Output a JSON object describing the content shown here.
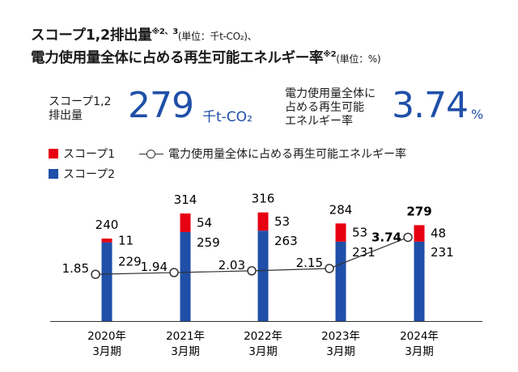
{
  "header": {
    "line1": "スコープ1,2排出量",
    "line1_note": "※2、3",
    "line1_unit": "(単位：千t-CO₂)、",
    "line2": "電力使用量全体に占める再生可能エネルギー率",
    "line2_note": "※2",
    "line2_unit": "(単位：%)"
  },
  "kpi": {
    "emissions_label_1": "スコープ1,2",
    "emissions_label_2": "排出量",
    "emissions_value": "279",
    "emissions_unit": "千t-CO₂",
    "re_label_1": "電力使用量全体に",
    "re_label_2": "占める再生可能",
    "re_label_3": "エネルギー率",
    "re_value": "3.74",
    "re_unit": "%"
  },
  "legend": {
    "scope1": "スコープ1",
    "scope2": "スコープ2",
    "re_ratio": "電力使用量全体に占める再生可能エネルギー率"
  },
  "colors": {
    "scope1": "#e60012",
    "scope2": "#1f4fa8",
    "line": "#333333",
    "accent": "#1f4fa8"
  },
  "chart_data": {
    "type": "bar",
    "stacked": true,
    "categories": [
      [
        "2020年",
        "3月期"
      ],
      [
        "2021年",
        "3月期"
      ],
      [
        "2022年",
        "3月期"
      ],
      [
        "2023年",
        "3月期"
      ],
      [
        "2024年",
        "3月期"
      ]
    ],
    "series": [
      {
        "name": "スコープ2",
        "values": [
          229,
          259,
          263,
          231,
          231
        ]
      },
      {
        "name": "スコープ1",
        "values": [
          11,
          54,
          53,
          53,
          48
        ]
      }
    ],
    "totals": [
      240,
      314,
      316,
      284,
      279
    ],
    "line_series": {
      "name": "電力使用量全体に占める再生可能エネルギー率",
      "values": [
        1.85,
        1.94,
        2.03,
        2.15,
        3.74
      ],
      "labels": [
        "1.85",
        "1.94",
        "2.03",
        "2.15",
        "3.74"
      ]
    },
    "highlight_last": true
  }
}
